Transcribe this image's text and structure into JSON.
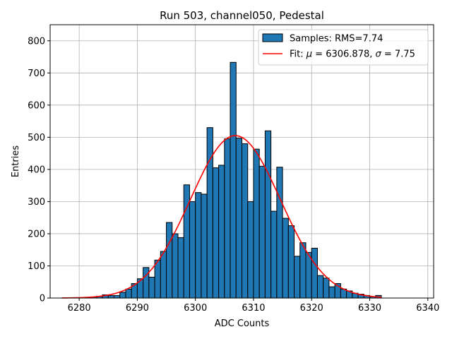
{
  "chart_data": {
    "type": "bar",
    "title": "Run 503, channel050, Pedestal",
    "xlabel": "ADC Counts",
    "ylabel": "Entries",
    "xlim": [
      6275,
      6341
    ],
    "ylim": [
      0,
      850
    ],
    "xticks": [
      6280,
      6290,
      6300,
      6310,
      6320,
      6330,
      6340
    ],
    "yticks": [
      0,
      100,
      200,
      300,
      400,
      500,
      600,
      700,
      800
    ],
    "grid": true,
    "legend_position": "top-right",
    "histogram": {
      "name": "Samples: RMS=7.74",
      "color": "#1f77b4",
      "bin_width": 1,
      "bins": [
        {
          "x": 6281,
          "y": 2
        },
        {
          "x": 6282,
          "y": 3
        },
        {
          "x": 6283,
          "y": 5
        },
        {
          "x": 6284,
          "y": 10
        },
        {
          "x": 6285,
          "y": 8
        },
        {
          "x": 6286,
          "y": 8
        },
        {
          "x": 6287,
          "y": 18
        },
        {
          "x": 6288,
          "y": 28
        },
        {
          "x": 6289,
          "y": 45
        },
        {
          "x": 6290,
          "y": 60
        },
        {
          "x": 6291,
          "y": 95
        },
        {
          "x": 6292,
          "y": 65
        },
        {
          "x": 6293,
          "y": 118
        },
        {
          "x": 6294,
          "y": 145
        },
        {
          "x": 6295,
          "y": 235
        },
        {
          "x": 6296,
          "y": 200
        },
        {
          "x": 6297,
          "y": 188
        },
        {
          "x": 6298,
          "y": 352
        },
        {
          "x": 6299,
          "y": 300
        },
        {
          "x": 6300,
          "y": 328
        },
        {
          "x": 6301,
          "y": 323
        },
        {
          "x": 6302,
          "y": 530
        },
        {
          "x": 6303,
          "y": 405
        },
        {
          "x": 6304,
          "y": 413
        },
        {
          "x": 6305,
          "y": 495
        },
        {
          "x": 6306,
          "y": 733
        },
        {
          "x": 6307,
          "y": 497
        },
        {
          "x": 6308,
          "y": 480
        },
        {
          "x": 6309,
          "y": 300
        },
        {
          "x": 6310,
          "y": 463
        },
        {
          "x": 6311,
          "y": 410
        },
        {
          "x": 6312,
          "y": 520
        },
        {
          "x": 6313,
          "y": 270
        },
        {
          "x": 6314,
          "y": 407
        },
        {
          "x": 6315,
          "y": 248
        },
        {
          "x": 6316,
          "y": 225
        },
        {
          "x": 6317,
          "y": 130
        },
        {
          "x": 6318,
          "y": 172
        },
        {
          "x": 6319,
          "y": 142
        },
        {
          "x": 6320,
          "y": 155
        },
        {
          "x": 6321,
          "y": 70
        },
        {
          "x": 6322,
          "y": 62
        },
        {
          "x": 6323,
          "y": 35
        },
        {
          "x": 6324,
          "y": 45
        },
        {
          "x": 6325,
          "y": 28
        },
        {
          "x": 6326,
          "y": 22
        },
        {
          "x": 6327,
          "y": 15
        },
        {
          "x": 6328,
          "y": 12
        },
        {
          "x": 6329,
          "y": 8
        },
        {
          "x": 6330,
          "y": 4
        },
        {
          "x": 6331,
          "y": 8
        }
      ]
    },
    "fit": {
      "name": "Fit: μ = 6306.878, σ = 7.75",
      "label_prefix": "Fit: ",
      "mu_symbol": "μ",
      "mu_text": " = 6306.878, ",
      "sigma_symbol": "σ",
      "sigma_text": " = 7.75",
      "color": "#ff0000",
      "mu": 6306.878,
      "sigma": 7.75,
      "amplitude": 505,
      "x_range": [
        6277,
        6332
      ]
    }
  }
}
